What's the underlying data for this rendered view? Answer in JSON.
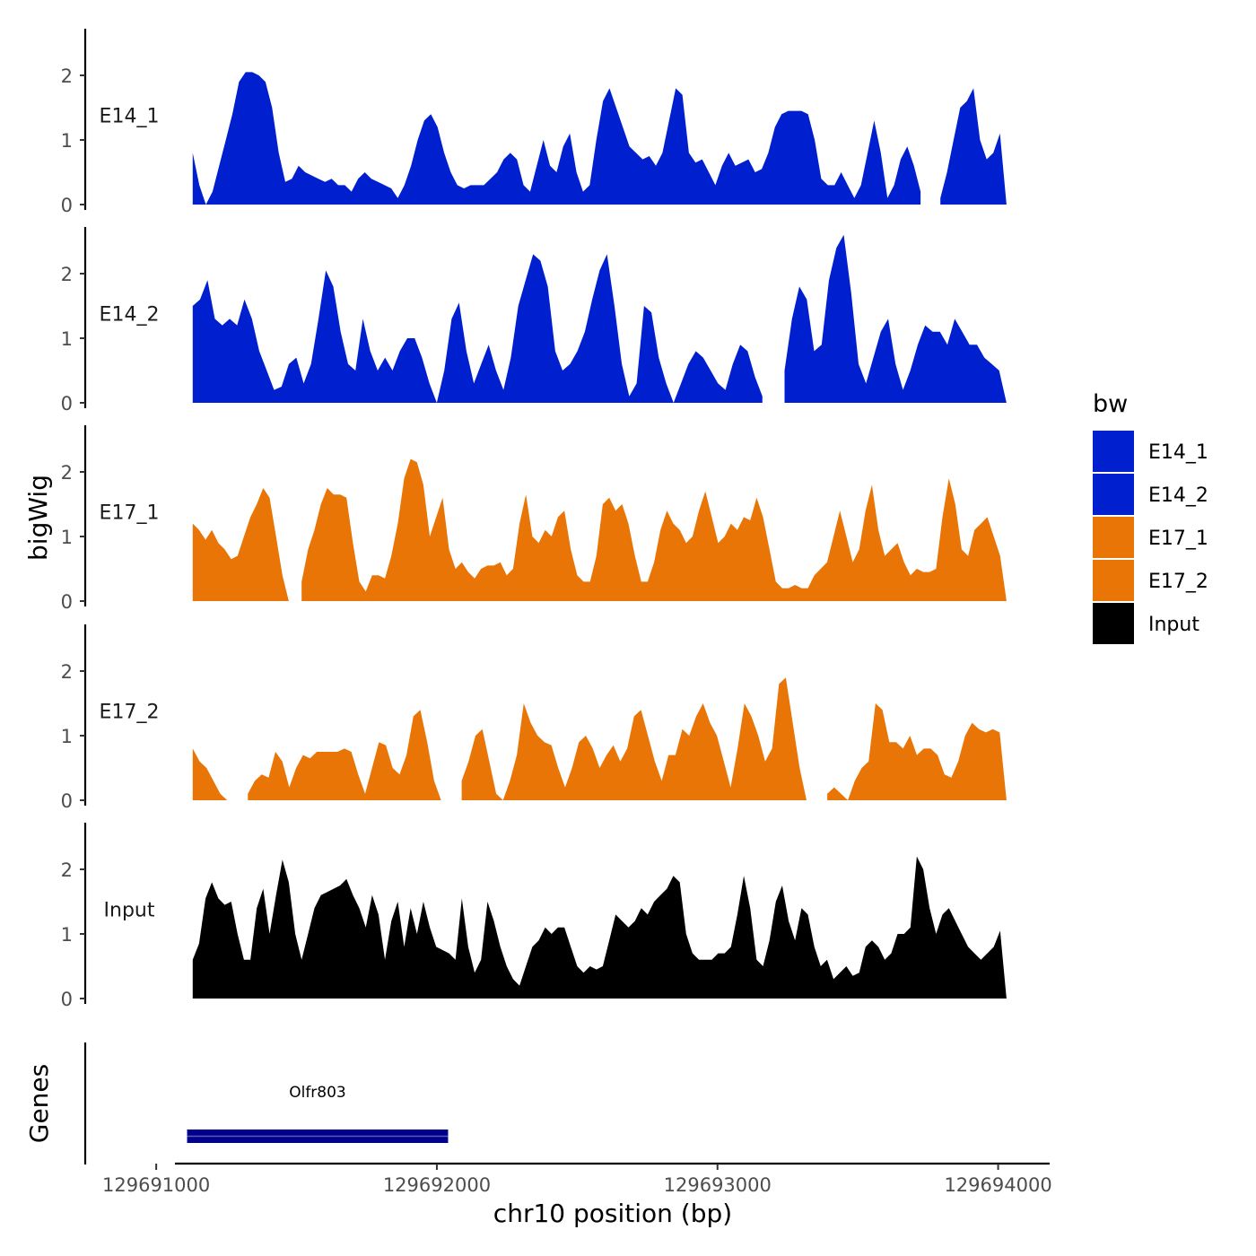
{
  "chart_data": {
    "type": "area",
    "title": "",
    "xlabel": "chr10 position (bp)",
    "ylabel": "bigWig",
    "genes_label": "Genes",
    "xlim": [
      129690990,
      129694190
    ],
    "ylim": [
      0,
      2.7
    ],
    "x_ticks": [
      129691000,
      129692000,
      129693000,
      129694000
    ],
    "x_tick_labels": [
      "129691000",
      "129692000",
      "129693000",
      "129694000"
    ],
    "y_ticks": [
      0,
      1,
      2
    ],
    "y_tick_labels": [
      "0",
      "1",
      "2"
    ],
    "x_start": 129691130,
    "x_end": 129694030,
    "legend": {
      "title": "bw",
      "position": "right",
      "entries": [
        {
          "label": "E14_1",
          "color": "#0020d0"
        },
        {
          "label": "E14_2",
          "color": "#0020d0"
        },
        {
          "label": "E17_1",
          "color": "#e87506"
        },
        {
          "label": "E17_2",
          "color": "#e87506"
        },
        {
          "label": "Input",
          "color": "#000000"
        }
      ]
    },
    "genes": [
      {
        "name": "Olfr803",
        "start": 129691110,
        "end": 129692040,
        "color": "#00008b"
      }
    ],
    "series": [
      {
        "name": "E14_1",
        "color": "#0020d0",
        "values": [
          0.8,
          0.3,
          0.0,
          0.2,
          0.6,
          1.0,
          1.4,
          1.9,
          2.05,
          2.05,
          2.0,
          1.9,
          1.5,
          0.8,
          0.35,
          0.4,
          0.6,
          0.5,
          0.45,
          0.4,
          0.35,
          0.4,
          0.3,
          0.3,
          0.2,
          0.4,
          0.5,
          0.4,
          0.35,
          0.3,
          0.25,
          0.1,
          0.3,
          0.6,
          1.0,
          1.3,
          1.4,
          1.2,
          0.8,
          0.5,
          0.3,
          0.25,
          0.3,
          0.3,
          0.3,
          0.4,
          0.5,
          0.7,
          0.8,
          0.7,
          0.3,
          0.2,
          0.6,
          1.0,
          0.6,
          0.5,
          0.9,
          1.1,
          0.5,
          0.2,
          0.3,
          1.0,
          1.6,
          1.8,
          1.5,
          1.2,
          0.9,
          0.8,
          0.7,
          0.75,
          0.6,
          0.8,
          1.3,
          1.8,
          1.7,
          0.8,
          0.65,
          0.7,
          0.5,
          0.3,
          0.6,
          0.8,
          0.6,
          0.65,
          0.7,
          0.5,
          0.55,
          0.8,
          1.2,
          1.4,
          1.45,
          1.45,
          1.45,
          1.4,
          1.0,
          0.4,
          0.3,
          0.3,
          0.5,
          0.3,
          0.1,
          0.3,
          0.8,
          1.3,
          0.8,
          0.1,
          0.3,
          0.7,
          0.9,
          0.6,
          0.2,
          null,
          null,
          0.1,
          0.5,
          1.0,
          1.5,
          1.6,
          1.8,
          1.0,
          0.7,
          0.8,
          1.1,
          0.0
        ],
        "gaps": [
          "129693720-129693780"
        ]
      },
      {
        "name": "E14_2",
        "color": "#0020d0",
        "values": [
          1.5,
          1.6,
          1.9,
          1.3,
          1.2,
          1.3,
          1.2,
          1.6,
          1.3,
          0.8,
          0.5,
          0.2,
          0.25,
          0.6,
          0.7,
          0.3,
          0.6,
          1.3,
          2.05,
          1.8,
          1.1,
          0.6,
          0.5,
          1.3,
          0.8,
          0.5,
          0.7,
          0.5,
          0.8,
          1.0,
          1.0,
          0.7,
          0.3,
          0.0,
          0.5,
          1.3,
          1.55,
          0.8,
          0.3,
          0.6,
          0.9,
          0.5,
          0.2,
          0.7,
          1.5,
          1.9,
          2.3,
          2.2,
          1.8,
          0.8,
          0.5,
          0.6,
          0.8,
          1.1,
          1.6,
          2.05,
          2.3,
          1.5,
          0.6,
          0.1,
          0.3,
          1.5,
          1.4,
          0.7,
          0.3,
          0.0,
          0.3,
          0.6,
          0.8,
          0.7,
          0.5,
          0.3,
          0.2,
          0.6,
          0.9,
          0.8,
          0.4,
          0.1,
          null,
          null,
          0.5,
          1.3,
          1.8,
          1.6,
          0.8,
          0.9,
          1.9,
          2.4,
          2.6,
          1.7,
          0.6,
          0.3,
          0.7,
          1.1,
          1.3,
          0.6,
          0.2,
          0.5,
          0.9,
          1.2,
          1.1,
          1.1,
          0.9,
          1.3,
          1.1,
          0.9,
          0.9,
          0.7,
          0.6,
          0.5,
          0.0
        ],
        "gaps": [
          "129693240-129693330"
        ]
      },
      {
        "name": "E17_1",
        "color": "#e87506",
        "values": [
          1.2,
          1.1,
          0.95,
          1.1,
          0.9,
          0.8,
          0.65,
          0.7,
          1.0,
          1.3,
          1.5,
          1.75,
          1.6,
          1.0,
          0.4,
          0.0,
          null,
          0.3,
          0.8,
          1.1,
          1.5,
          1.75,
          1.65,
          1.65,
          1.6,
          0.9,
          0.3,
          0.15,
          0.4,
          0.4,
          0.35,
          0.7,
          1.2,
          1.9,
          2.2,
          2.15,
          1.8,
          1.0,
          1.3,
          1.6,
          0.8,
          0.5,
          0.6,
          0.45,
          0.35,
          0.5,
          0.55,
          0.55,
          0.6,
          0.4,
          0.5,
          1.2,
          1.65,
          1.0,
          0.9,
          1.1,
          1.0,
          1.3,
          1.4,
          0.8,
          0.4,
          0.3,
          0.3,
          0.7,
          1.5,
          1.6,
          1.4,
          1.5,
          1.2,
          0.7,
          0.3,
          0.3,
          0.6,
          1.1,
          1.4,
          1.2,
          1.1,
          0.9,
          1.0,
          1.4,
          1.7,
          1.3,
          0.9,
          1.0,
          1.2,
          1.1,
          1.3,
          1.25,
          1.6,
          1.3,
          0.8,
          0.3,
          0.2,
          0.2,
          0.25,
          0.2,
          0.2,
          0.4,
          0.5,
          0.6,
          1.0,
          1.4,
          1.0,
          0.6,
          0.8,
          1.4,
          1.8,
          1.1,
          0.7,
          0.8,
          0.9,
          0.6,
          0.4,
          0.5,
          0.45,
          0.45,
          0.5,
          1.3,
          1.9,
          1.5,
          0.8,
          0.7,
          1.1,
          1.2,
          1.3,
          1.0,
          0.7,
          0.0
        ],
        "gaps": [
          "129691470-129691490"
        ]
      },
      {
        "name": "E17_2",
        "color": "#e87506",
        "values": [
          0.8,
          0.6,
          0.5,
          0.3,
          0.1,
          0.0,
          null,
          null,
          0.1,
          0.3,
          0.4,
          0.35,
          0.75,
          0.6,
          0.2,
          0.5,
          0.7,
          0.65,
          0.75,
          0.75,
          0.75,
          0.75,
          0.8,
          0.75,
          0.4,
          0.1,
          0.5,
          0.9,
          0.85,
          0.5,
          0.4,
          0.7,
          1.3,
          1.4,
          0.9,
          0.3,
          0.0,
          null,
          null,
          0.3,
          0.6,
          1.0,
          1.1,
          0.6,
          0.1,
          0.0,
          0.3,
          0.7,
          1.5,
          1.2,
          1.0,
          0.9,
          0.85,
          0.5,
          0.2,
          0.5,
          0.9,
          1.0,
          0.8,
          0.5,
          0.7,
          0.85,
          0.6,
          0.8,
          1.3,
          1.4,
          1.0,
          0.6,
          0.3,
          0.7,
          0.7,
          1.1,
          1.0,
          1.3,
          1.5,
          1.2,
          1.0,
          0.6,
          0.2,
          0.8,
          1.5,
          1.3,
          1.0,
          0.6,
          0.8,
          1.8,
          1.9,
          1.2,
          0.5,
          0.0,
          null,
          null,
          0.1,
          0.2,
          0.1,
          0.0,
          0.3,
          0.5,
          0.6,
          1.5,
          1.4,
          0.9,
          0.9,
          0.8,
          1.0,
          0.7,
          0.8,
          0.8,
          0.7,
          0.4,
          0.35,
          0.6,
          1.0,
          1.2,
          1.1,
          1.05,
          1.1,
          1.05,
          0.0
        ],
        "gaps": [
          "129691250-129691290",
          "129691960-129692040",
          "129693260-129693320"
        ]
      },
      {
        "name": "Input",
        "color": "#000000",
        "values": [
          0.6,
          0.85,
          1.55,
          1.8,
          1.55,
          1.45,
          1.5,
          1.0,
          0.6,
          0.6,
          1.4,
          1.7,
          1.0,
          1.6,
          2.15,
          1.8,
          1.0,
          0.6,
          1.0,
          1.4,
          1.6,
          1.65,
          1.7,
          1.75,
          1.85,
          1.6,
          1.4,
          1.1,
          1.6,
          1.3,
          0.6,
          1.2,
          1.5,
          0.8,
          1.4,
          1.0,
          1.5,
          1.1,
          0.8,
          0.75,
          0.7,
          0.6,
          1.55,
          0.8,
          0.4,
          0.6,
          1.5,
          1.2,
          0.8,
          0.5,
          0.3,
          0.2,
          0.5,
          0.8,
          0.9,
          1.1,
          1.0,
          1.1,
          1.1,
          0.8,
          0.5,
          0.4,
          0.5,
          0.45,
          0.5,
          0.9,
          1.3,
          1.2,
          1.1,
          1.2,
          1.4,
          1.3,
          1.5,
          1.6,
          1.7,
          1.9,
          1.8,
          1.0,
          0.7,
          0.6,
          0.6,
          0.6,
          0.7,
          0.7,
          0.8,
          1.3,
          1.9,
          1.4,
          0.6,
          0.5,
          0.9,
          1.5,
          1.75,
          1.2,
          0.9,
          1.4,
          1.3,
          0.8,
          0.5,
          0.6,
          0.3,
          0.4,
          0.5,
          0.35,
          0.4,
          0.8,
          0.9,
          0.8,
          0.6,
          0.7,
          1.0,
          1.0,
          1.1,
          2.2,
          2.0,
          1.4,
          1.0,
          1.3,
          1.4,
          1.2,
          1.0,
          0.8,
          0.7,
          0.6,
          0.7,
          0.8,
          1.05,
          0.0
        ],
        "gaps": []
      }
    ]
  }
}
